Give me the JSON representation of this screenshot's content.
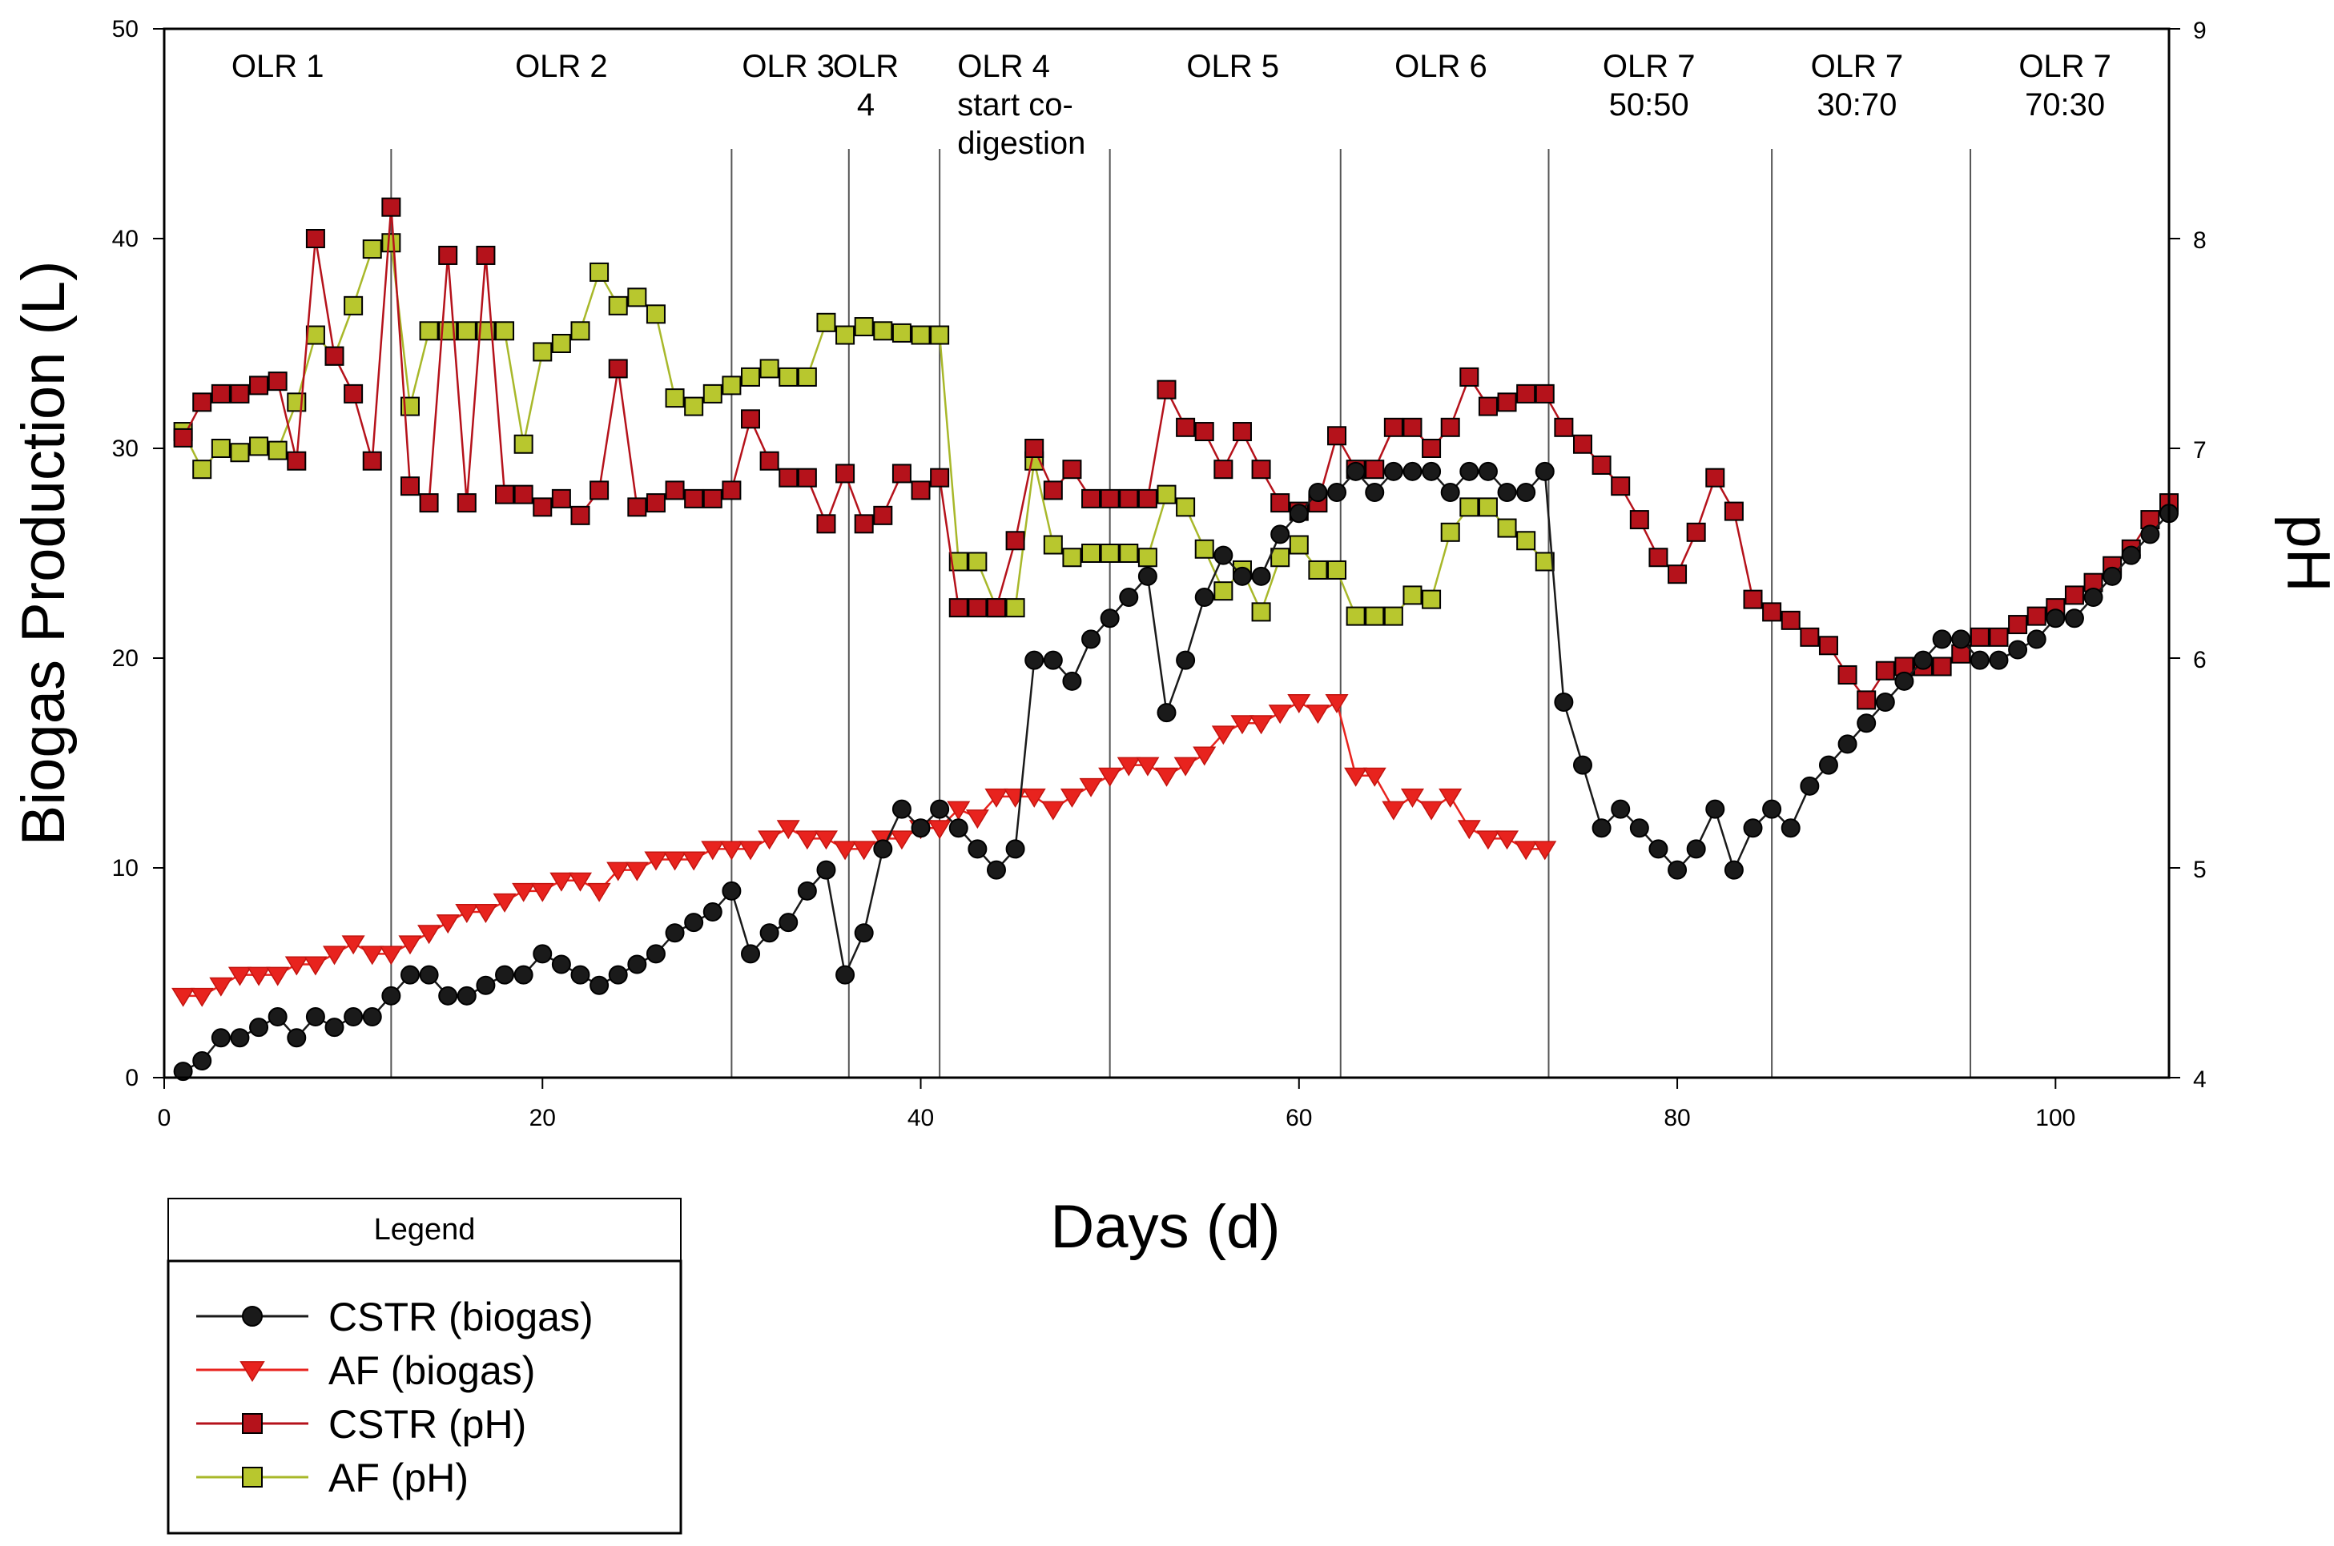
{
  "chart_data": {
    "type": "line",
    "xlabel": "Days (d)",
    "ylabel_left": "Biogas Production (L)",
    "ylabel_right": "pH",
    "xlim": [
      0,
      106
    ],
    "ylim_left": [
      0,
      50
    ],
    "ylim_right": [
      4,
      9
    ],
    "xticks": [
      0,
      20,
      40,
      60,
      80,
      100
    ],
    "yticks_left": [
      0,
      10,
      20,
      30,
      40,
      50
    ],
    "yticks_right": [
      4,
      5,
      6,
      7,
      8,
      9
    ],
    "phase_boundaries": [
      12,
      30,
      36.2,
      41,
      50,
      62.2,
      73.2,
      85,
      95.5
    ],
    "phases": [
      {
        "lines": [
          "OLR 1"
        ],
        "x": 6
      },
      {
        "lines": [
          "OLR 2"
        ],
        "x": 21
      },
      {
        "lines": [
          "OLR 3"
        ],
        "x": 33
      },
      {
        "lines": [
          "OLR",
          "4"
        ],
        "x": 37.1
      },
      {
        "lines": [
          "OLR 4",
          "start co-",
          "digestion"
        ],
        "x": 41.6
      },
      {
        "lines": [
          "OLR 5"
        ],
        "x": 56.5
      },
      {
        "lines": [
          "OLR 6"
        ],
        "x": 67.5
      },
      {
        "lines": [
          "OLR 7",
          "50:50"
        ],
        "x": 78.5
      },
      {
        "lines": [
          "OLR 7",
          "30:70"
        ],
        "x": 89.5
      },
      {
        "lines": [
          "OLR 7",
          "70:30"
        ],
        "x": 100.5
      }
    ],
    "series": [
      {
        "name": "CSTR (biogas)",
        "axis": "left",
        "color": "#1a1a1a",
        "marker": "circle",
        "x": [
          1,
          2,
          3,
          4,
          5,
          6,
          7,
          8,
          9,
          10,
          11,
          12,
          13,
          14,
          15,
          16,
          17,
          18,
          19,
          20,
          21,
          22,
          23,
          24,
          25,
          26,
          27,
          28,
          29,
          30,
          31,
          32,
          33,
          34,
          35,
          36,
          37,
          38,
          39,
          40,
          41,
          42,
          43,
          44,
          45,
          46,
          47,
          48,
          49,
          50,
          51,
          52,
          53,
          54,
          55,
          56,
          57,
          58,
          59,
          60,
          61,
          62,
          63,
          64,
          65,
          66,
          67,
          68,
          69,
          70,
          71,
          72,
          73,
          74,
          75,
          76,
          77,
          78,
          79,
          80,
          81,
          82,
          83,
          84,
          85,
          86,
          87,
          88,
          89,
          90,
          91,
          92,
          93,
          94,
          95,
          96,
          97,
          98,
          99,
          100,
          101,
          102,
          103,
          104,
          105,
          106
        ],
        "values": [
          0.3,
          0.8,
          1.9,
          1.9,
          2.4,
          2.9,
          1.9,
          2.9,
          2.4,
          2.9,
          2.9,
          3.9,
          4.9,
          4.9,
          3.9,
          3.9,
          4.4,
          4.9,
          4.9,
          5.9,
          5.4,
          4.9,
          4.4,
          4.9,
          5.4,
          5.9,
          6.9,
          7.4,
          7.9,
          8.9,
          5.9,
          6.9,
          7.4,
          8.9,
          9.9,
          4.9,
          6.9,
          10.9,
          12.8,
          11.9,
          12.8,
          11.9,
          10.9,
          9.9,
          10.9,
          19.9,
          19.9,
          18.9,
          20.9,
          21.9,
          22.9,
          23.9,
          17.4,
          19.9,
          22.9,
          24.9,
          23.9,
          23.9,
          25.9,
          26.9,
          27.9,
          27.9,
          28.9,
          27.9,
          28.9,
          28.9,
          28.9,
          27.9,
          28.9,
          28.9,
          27.9,
          27.9,
          28.9,
          17.9,
          14.9,
          11.9,
          12.8,
          11.9,
          10.9,
          9.9,
          10.9,
          12.8,
          9.9,
          11.9,
          12.8,
          11.9,
          13.9,
          14.9,
          15.9,
          16.9,
          17.9,
          18.9,
          19.9,
          20.9,
          20.9,
          19.9,
          19.9,
          20.4,
          20.9,
          21.9,
          21.9,
          22.9,
          23.9,
          24.9,
          25.9,
          26.9
        ]
      },
      {
        "name": "AF (biogas)",
        "axis": "left",
        "color": "#e8231e",
        "marker": "triangle-down",
        "x": [
          1,
          2,
          3,
          4,
          5,
          6,
          7,
          8,
          9,
          10,
          11,
          12,
          13,
          14,
          15,
          16,
          17,
          18,
          19,
          20,
          21,
          22,
          23,
          24,
          25,
          26,
          27,
          28,
          29,
          30,
          31,
          32,
          33,
          34,
          35,
          36,
          37,
          38,
          39,
          40,
          41,
          42,
          43,
          44,
          45,
          46,
          47,
          48,
          49,
          50,
          51,
          52,
          53,
          54,
          55,
          56,
          57,
          58,
          59,
          60,
          61,
          62,
          63,
          64,
          65,
          66,
          67,
          68,
          69,
          70,
          71,
          72,
          73
        ],
        "values": [
          3.9,
          3.9,
          4.4,
          4.9,
          4.9,
          4.9,
          5.4,
          5.4,
          5.9,
          6.4,
          5.9,
          5.9,
          6.4,
          6.9,
          7.4,
          7.9,
          7.9,
          8.4,
          8.9,
          8.9,
          9.4,
          9.4,
          8.9,
          9.9,
          9.9,
          10.4,
          10.4,
          10.4,
          10.9,
          10.9,
          10.9,
          11.4,
          11.9,
          11.4,
          11.4,
          10.9,
          10.9,
          11.4,
          11.4,
          11.9,
          11.9,
          12.8,
          12.4,
          13.4,
          13.4,
          13.4,
          12.8,
          13.4,
          13.9,
          14.4,
          14.9,
          14.9,
          14.4,
          14.9,
          15.4,
          16.4,
          16.9,
          16.9,
          17.4,
          17.9,
          17.4,
          17.9,
          14.4,
          14.4,
          12.8,
          13.4,
          12.8,
          13.4,
          11.9,
          11.4,
          11.4,
          10.9,
          10.9
        ]
      },
      {
        "name": "CSTR (pH)",
        "axis": "right",
        "color": "#b5121b",
        "marker": "square",
        "x": [
          1,
          2,
          3,
          4,
          5,
          6,
          7,
          8,
          9,
          10,
          11,
          12,
          13,
          14,
          15,
          16,
          17,
          18,
          19,
          20,
          21,
          22,
          23,
          24,
          25,
          26,
          27,
          28,
          29,
          30,
          31,
          32,
          33,
          34,
          35,
          36,
          37,
          38,
          39,
          40,
          41,
          42,
          43,
          44,
          45,
          46,
          47,
          48,
          49,
          50,
          51,
          52,
          53,
          54,
          55,
          56,
          57,
          58,
          59,
          60,
          61,
          62,
          63,
          64,
          65,
          66,
          67,
          68,
          69,
          70,
          71,
          72,
          73,
          74,
          75,
          76,
          77,
          78,
          79,
          80,
          81,
          82,
          83,
          84,
          85,
          86,
          87,
          88,
          89,
          90,
          91,
          92,
          93,
          94,
          95,
          96,
          97,
          98,
          99,
          100,
          101,
          102,
          103,
          104,
          105,
          106
        ],
        "values": [
          7.05,
          7.22,
          7.26,
          7.26,
          7.3,
          7.32,
          6.94,
          8.0,
          7.44,
          7.26,
          6.94,
          8.15,
          6.82,
          6.74,
          7.92,
          6.74,
          7.92,
          6.78,
          6.78,
          6.72,
          6.76,
          6.68,
          6.8,
          7.38,
          6.72,
          6.74,
          6.8,
          6.76,
          6.76,
          6.8,
          7.14,
          6.94,
          6.86,
          6.86,
          6.64,
          6.88,
          6.64,
          6.68,
          6.88,
          6.8,
          6.86,
          6.24,
          6.24,
          6.24,
          6.56,
          7.0,
          6.8,
          6.9,
          6.76,
          6.76,
          6.76,
          6.76,
          7.28,
          7.1,
          7.08,
          6.9,
          7.08,
          6.9,
          6.74,
          6.7,
          6.74,
          7.06,
          6.9,
          6.9,
          7.1,
          7.1,
          7.0,
          7.1,
          7.34,
          7.2,
          7.22,
          7.26,
          7.26,
          7.1,
          7.02,
          6.92,
          6.82,
          6.66,
          6.48,
          6.4,
          6.6,
          6.86,
          6.7,
          6.28,
          6.22,
          6.18,
          6.1,
          6.06,
          5.92,
          5.8,
          5.94,
          5.96,
          5.96,
          5.96,
          6.02,
          6.1,
          6.1,
          6.16,
          6.2,
          6.24,
          6.3,
          6.36,
          6.44,
          6.52,
          6.66,
          6.74
        ]
      },
      {
        "name": "AF (pH)",
        "axis": "right",
        "color": "#a8b82a",
        "fill": "#b8c72e",
        "marker": "square",
        "x": [
          1,
          2,
          3,
          4,
          5,
          6,
          7,
          8,
          9,
          10,
          11,
          12,
          13,
          14,
          15,
          16,
          17,
          18,
          19,
          20,
          21,
          22,
          23,
          24,
          25,
          26,
          27,
          28,
          29,
          30,
          31,
          32,
          33,
          34,
          35,
          36,
          37,
          38,
          39,
          40,
          41,
          42,
          43,
          44,
          45,
          46,
          47,
          48,
          49,
          50,
          51,
          52,
          53,
          54,
          55,
          56,
          57,
          58,
          59,
          60,
          61,
          62,
          63,
          64,
          65,
          66,
          67,
          68,
          69,
          70,
          71,
          72,
          73
        ],
        "values": [
          7.08,
          6.9,
          7.0,
          6.98,
          7.01,
          6.99,
          7.22,
          7.54,
          7.44,
          7.68,
          7.95,
          7.98,
          7.2,
          7.56,
          7.56,
          7.56,
          7.56,
          7.56,
          7.02,
          7.46,
          7.5,
          7.56,
          7.84,
          7.68,
          7.72,
          7.64,
          7.24,
          7.2,
          7.26,
          7.3,
          7.34,
          7.38,
          7.34,
          7.34,
          7.6,
          7.54,
          7.58,
          7.56,
          7.55,
          7.54,
          7.54,
          6.46,
          6.46,
          6.24,
          6.24,
          6.94,
          6.54,
          6.48,
          6.5,
          6.5,
          6.5,
          6.48,
          6.78,
          6.72,
          6.52,
          6.32,
          6.42,
          6.22,
          6.48,
          6.54,
          6.42,
          6.42,
          6.2,
          6.2,
          6.2,
          6.3,
          6.28,
          6.6,
          6.72,
          6.72,
          6.62,
          6.56,
          6.46
        ]
      }
    ],
    "legend": {
      "title": "Legend",
      "position": "bottom-left",
      "entries": [
        "CSTR (biogas)",
        "AF (biogas)",
        "CSTR (pH)",
        "AF (pH)"
      ]
    }
  }
}
